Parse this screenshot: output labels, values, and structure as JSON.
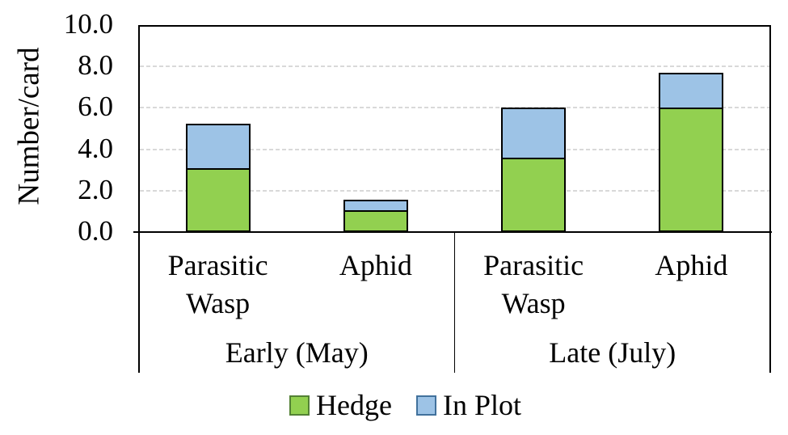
{
  "chart_data": {
    "type": "bar",
    "variant": "stacked-vertical",
    "title": "",
    "ylabel": "Number/card",
    "xlabel": "",
    "ylim": [
      0.0,
      10.0
    ],
    "ytick_labels": [
      "10.0",
      "8.0",
      "6.0",
      "4.0",
      "2.0",
      "0.0"
    ],
    "ytick_values": [
      10,
      8,
      6,
      4,
      2,
      0
    ],
    "grid": "horizontal dashed",
    "gridline_color": "#D9D9D9",
    "group_labels": [
      "Early (May)",
      "Late (July)"
    ],
    "categories": [
      {
        "label": "Parasitic Wasp",
        "group": 0
      },
      {
        "label": "Aphid",
        "group": 0
      },
      {
        "label": "Parasitic Wasp",
        "group": 1
      },
      {
        "label": "Aphid",
        "group": 1
      }
    ],
    "series": [
      {
        "name": "Hedge",
        "color": "#92D050",
        "swatch_border": "#538135",
        "values": [
          3.0,
          0.95,
          3.5,
          5.9
        ]
      },
      {
        "name": "In Plot",
        "color": "#9DC3E6",
        "swatch_border": "#41719C",
        "values": [
          2.25,
          0.6,
          2.5,
          1.8
        ]
      }
    ],
    "bar_outline_color": "#000000",
    "legend_position": "bottom",
    "text_color": "#000000"
  }
}
